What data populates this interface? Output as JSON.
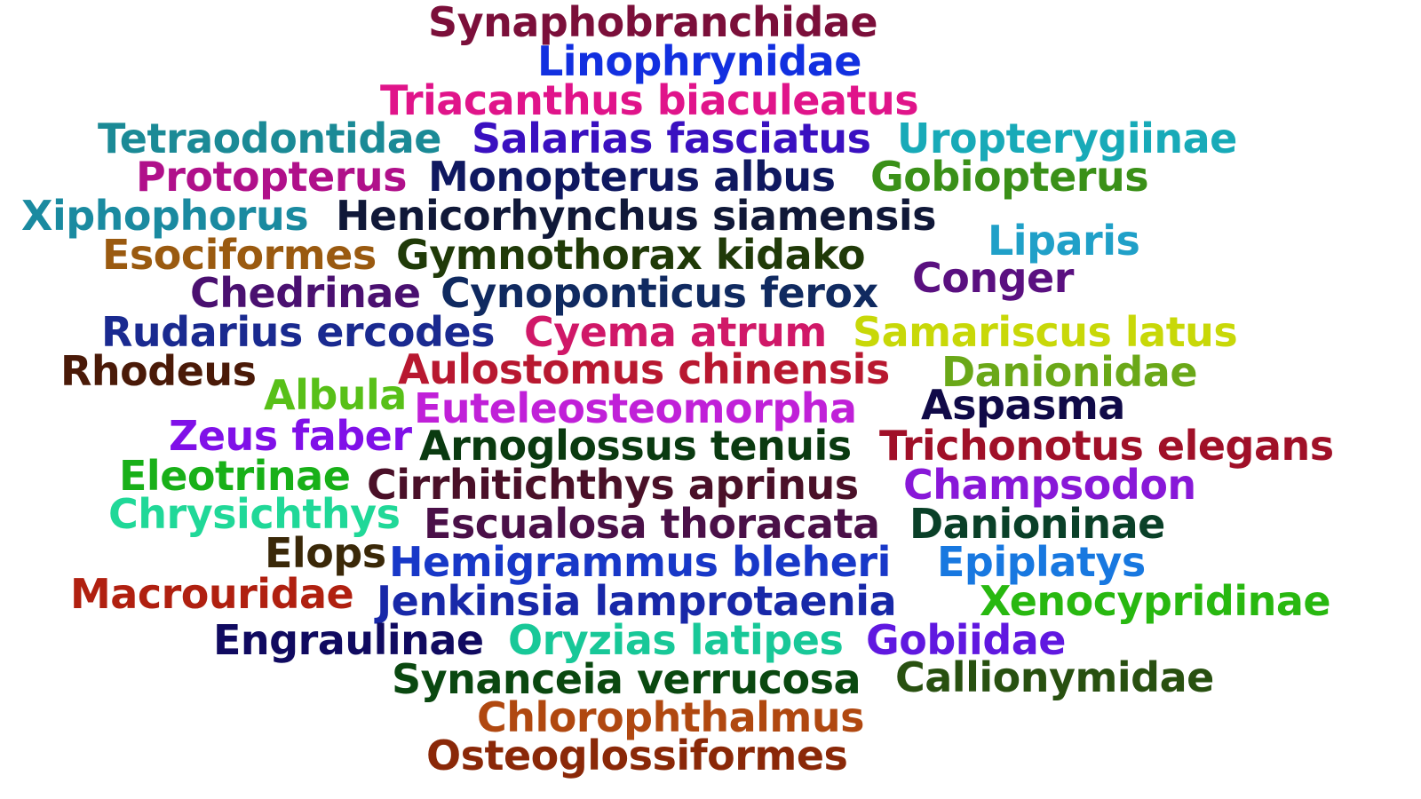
{
  "words": [
    {
      "text": "Synaphobranchidae",
      "color": "#7b0f3a"
    },
    {
      "text": "Linophrynidae",
      "color": "#1230e0"
    },
    {
      "text": "Triacanthus biaculeatus",
      "color": "#e0148a"
    },
    {
      "text": "Tetraodontidae",
      "color": "#1b8a96"
    },
    {
      "text": "Salarias fasciatus",
      "color": "#3a10c0"
    },
    {
      "text": "Uropterygiinae",
      "color": "#18aab8"
    },
    {
      "text": "Protopterus",
      "color": "#b0108a"
    },
    {
      "text": "Monopterus albus",
      "color": "#0f1860"
    },
    {
      "text": "Gobiopterus",
      "color": "#3a9018"
    },
    {
      "text": "Xiphophorus",
      "color": "#1a8aa0"
    },
    {
      "text": "Henicorhynchus siamensis",
      "color": "#101838"
    },
    {
      "text": "Liparis",
      "color": "#20a0c8"
    },
    {
      "text": "Esociformes",
      "color": "#9a5a10"
    },
    {
      "text": "Gymnothorax kidako",
      "color": "#203a08"
    },
    {
      "text": "Conger",
      "color": "#5a1080"
    },
    {
      "text": "Chedrinae",
      "color": "#4a1070"
    },
    {
      "text": "Cynoponticus ferox",
      "color": "#102a60"
    },
    {
      "text": "Rudarius ercodes",
      "color": "#1a2a90"
    },
    {
      "text": "Cyema atrum",
      "color": "#d01868"
    },
    {
      "text": "Samariscus latus",
      "color": "#c8d808"
    },
    {
      "text": "Rhodeus",
      "color": "#4a1a08"
    },
    {
      "text": "Aulostomus chinensis",
      "color": "#b81830"
    },
    {
      "text": "Danionidae",
      "color": "#6aa818"
    },
    {
      "text": "Albula",
      "color": "#58c018"
    },
    {
      "text": "Euteleosteomorpha",
      "color": "#c020d8"
    },
    {
      "text": "Aspasma",
      "color": "#100a48"
    },
    {
      "text": "Zeus faber",
      "color": "#8010e8"
    },
    {
      "text": "Arnoglossus tenuis",
      "color": "#0a3a10"
    },
    {
      "text": "Trichonotus elegans",
      "color": "#a01028"
    },
    {
      "text": "Eleotrinae",
      "color": "#18b018"
    },
    {
      "text": "Cirrhitichthys aprinus",
      "color": "#4a1028"
    },
    {
      "text": "Champsodon",
      "color": "#8818d8"
    },
    {
      "text": "Chrysichthys",
      "color": "#20d898"
    },
    {
      "text": "Escualosa thoracata",
      "color": "#4a1048"
    },
    {
      "text": "Danioninae",
      "color": "#0a4028"
    },
    {
      "text": "Elops",
      "color": "#3a2808"
    },
    {
      "text": "Hemigrammus bleheri",
      "color": "#1838c8"
    },
    {
      "text": "Epiplatys",
      "color": "#1878e0"
    },
    {
      "text": "Macrouridae",
      "color": "#b02010"
    },
    {
      "text": "Jenkinsia lamprotaenia",
      "color": "#1828a8"
    },
    {
      "text": "Xenocypridinae",
      "color": "#28b810"
    },
    {
      "text": "Engraulinae",
      "color": "#100a60"
    },
    {
      "text": "Oryzias latipes",
      "color": "#18c898"
    },
    {
      "text": "Gobiidae",
      "color": "#6018e0"
    },
    {
      "text": "Synanceia verrucosa",
      "color": "#0a4810"
    },
    {
      "text": "Callionymidae",
      "color": "#285010"
    },
    {
      "text": "Chlorophthalmus",
      "color": "#b04810"
    },
    {
      "text": "Osteoglossiformes",
      "color": "#8a2808"
    }
  ]
}
